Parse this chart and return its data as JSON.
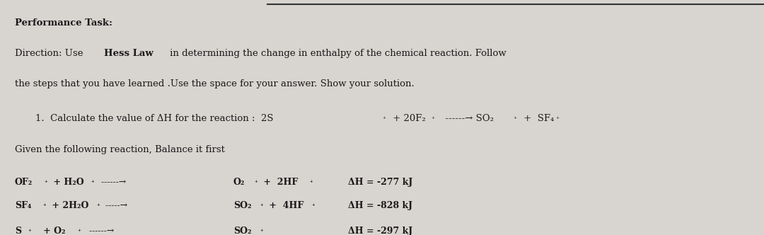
{
  "bg_color": "#d8d4d0",
  "top_line_color": "#333333",
  "text_color": "#1a1a1a",
  "title_bold": "Performance Task:",
  "line1": "Direction: Use ",
  "line1_bold": "Hess Law",
  "line1_rest": " in determining the change in enthalpy of the chemical reaction. Follow",
  "line2": "the steps that you have learned .Use the space for your answer. Show your solution.",
  "numbered_line": "1.  Calculate the value of ΔH for the reaction :  2S₊ + 20F₂₊  ------→ SO₂₊ +  SF₄₊",
  "given_line": "Given the following reaction, Balance it first",
  "rxn1_left": "OF₂₊ + H₂O₊ -----→",
  "rxn1_right": "O₂₊ +  2HF ₊",
  "rxn1_dH": "ΔH = -277 kJ",
  "rxn2_left": "SF₄₊ + 2H₂O₊ -----→",
  "rxn2_right": "SO₂₊ +  4HF₊",
  "rxn2_dH": "ΔH = -828 kJ",
  "rxn3_left": "S₊   + O₂₊  -----→",
  "rxn3_right": "SO₂₊",
  "rxn3_dH": "ΔH = -297 kJ"
}
